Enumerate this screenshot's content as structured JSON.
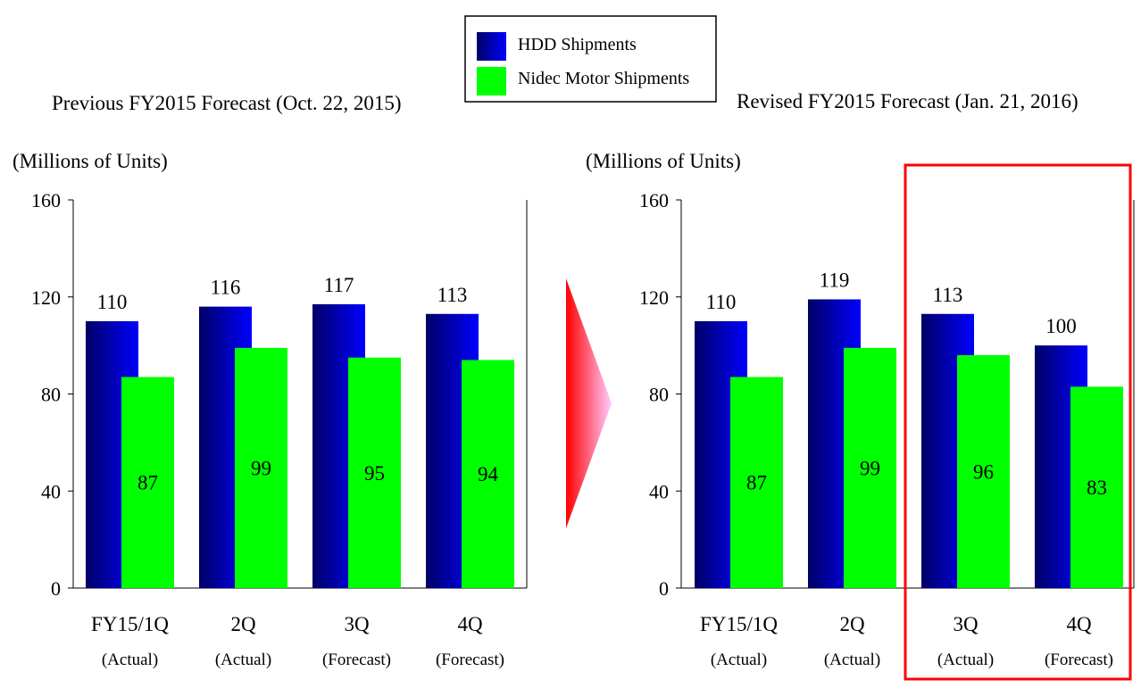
{
  "legend": {
    "items": [
      {
        "label": "HDD Shipments",
        "color": "#0000ff"
      },
      {
        "label": "Nidec Motor Shipments",
        "color": "#00ff00"
      }
    ]
  },
  "colors": {
    "hdd_dark": "#000066",
    "hdd_light": "#0000ff",
    "nidec": "#00ff00",
    "highlight": "#ff0000",
    "arrow_from": "#ff0000",
    "arrow_to": "#ffccff"
  },
  "chart_data": [
    {
      "type": "bar",
      "title": "Previous FY2015 Forecast (Oct. 22, 2015)",
      "ylabel": "(Millions of Units)",
      "ylim": [
        0,
        160
      ],
      "yticks": [
        0,
        40,
        80,
        120,
        160
      ],
      "grid": false,
      "categories": [
        {
          "label": "FY15/1Q",
          "sub": "(Actual)"
        },
        {
          "label": "2Q",
          "sub": "(Actual)"
        },
        {
          "label": "3Q",
          "sub": "(Forecast)"
        },
        {
          "label": "4Q",
          "sub": "(Forecast)"
        }
      ],
      "series": [
        {
          "name": "HDD Shipments",
          "values": [
            110,
            116,
            117,
            113
          ]
        },
        {
          "name": "Nidec Motor Shipments",
          "values": [
            87,
            99,
            95,
            94
          ]
        }
      ]
    },
    {
      "type": "bar",
      "title": "Revised FY2015 Forecast (Jan. 21, 2016)",
      "ylabel": "(Millions of Units)",
      "ylim": [
        0,
        160
      ],
      "yticks": [
        0,
        40,
        80,
        120,
        160
      ],
      "grid": false,
      "categories": [
        {
          "label": "FY15/1Q",
          "sub": "(Actual)"
        },
        {
          "label": "2Q",
          "sub": "(Actual)"
        },
        {
          "label": "3Q",
          "sub": "(Actual)"
        },
        {
          "label": "4Q",
          "sub": "(Forecast)"
        }
      ],
      "series": [
        {
          "name": "HDD Shipments",
          "values": [
            110,
            119,
            113,
            100
          ]
        },
        {
          "name": "Nidec Motor Shipments",
          "values": [
            87,
            99,
            96,
            83
          ]
        }
      ]
    }
  ]
}
